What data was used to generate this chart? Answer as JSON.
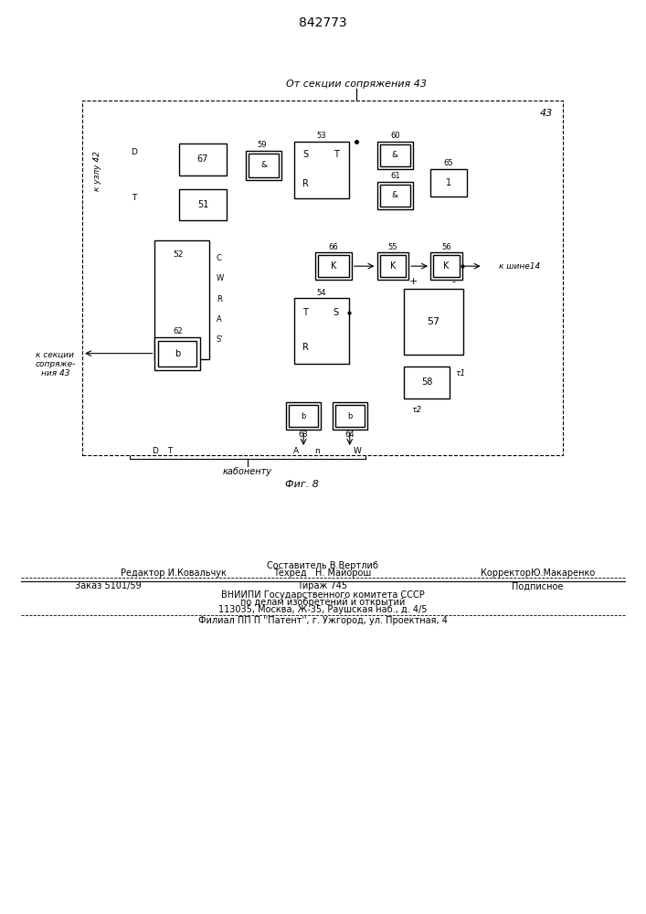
{
  "patent_number": "842773",
  "fig_label": "Фиг. 8",
  "bg_color": "#ffffff",
  "top_label": "От секции сопряжения 43",
  "corner_label": "43",
  "left_upper_label": "к узлу 42",
  "left_lower_label": "к секции\nсопряже-\nния 43",
  "right_label": "к шине14",
  "bottom_label": "кабоненту",
  "footer": {
    "sestavitel": "Составитель В.Вертлиб",
    "redaktor": "Редактор И.Ковальчук",
    "tehred": "Техред   Н. Майорош",
    "korrektor": "КорректорЮ.Макаренко",
    "zakaz": "Заказ 5101/59",
    "tirazh": "Тираж 745",
    "podpisnoe": "Подписное",
    "vniip": "ВНИИПИ Государственного комитета СССР",
    "po_delam": "по делам изобретений и открытий",
    "address": "113035, Москва, Ж-35, Раушская наб., д. 4/5",
    "filial": "Филиал ПП П ''Патент'', г. Ужгород, ул. Проектная, 4"
  }
}
